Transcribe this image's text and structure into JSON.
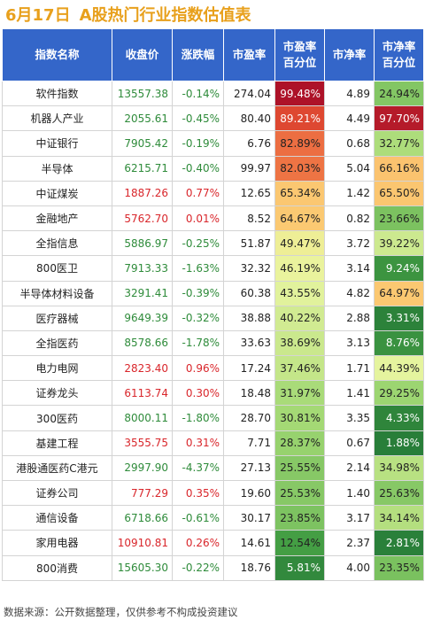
{
  "title": {
    "date": "6月17日",
    "text": "A股热门行业指数估值表"
  },
  "headers": [
    "指数名称",
    "收盘价",
    "涨跌幅",
    "市盈率",
    "市盈率百分位",
    "市净率",
    "市净率百分位"
  ],
  "colors": {
    "header_bg": "#3466c9",
    "title": "#e8a01c",
    "up": "#d9262b",
    "down": "#2e8b3a"
  },
  "rows": [
    {
      "name": "软件指数",
      "close": "13557.38",
      "change": "-0.14%",
      "pe": "274.04",
      "pe_pct": "99.48%",
      "pb": "4.89",
      "pb_pct": "24.94%"
    },
    {
      "name": "机器人产业",
      "close": "2055.61",
      "change": "-0.45%",
      "pe": "80.40",
      "pe_pct": "89.21%",
      "pb": "4.49",
      "pb_pct": "97.70%"
    },
    {
      "name": "中证银行",
      "close": "7905.42",
      "change": "-0.19%",
      "pe": "6.76",
      "pe_pct": "82.89%",
      "pb": "0.68",
      "pb_pct": "32.77%"
    },
    {
      "name": "半导体",
      "close": "6215.71",
      "change": "-0.40%",
      "pe": "99.97",
      "pe_pct": "82.03%",
      "pb": "5.04",
      "pb_pct": "66.16%"
    },
    {
      "name": "中证煤炭",
      "close": "1887.26",
      "change": "0.77%",
      "pe": "12.65",
      "pe_pct": "65.34%",
      "pb": "1.42",
      "pb_pct": "65.50%"
    },
    {
      "name": "金融地产",
      "close": "5762.70",
      "change": "0.01%",
      "pe": "8.52",
      "pe_pct": "64.67%",
      "pb": "0.82",
      "pb_pct": "23.66%"
    },
    {
      "name": "全指信息",
      "close": "5886.97",
      "change": "-0.25%",
      "pe": "51.87",
      "pe_pct": "49.47%",
      "pb": "3.72",
      "pb_pct": "39.22%"
    },
    {
      "name": "800医卫",
      "close": "7913.33",
      "change": "-1.63%",
      "pe": "32.32",
      "pe_pct": "46.19%",
      "pb": "3.14",
      "pb_pct": "9.24%"
    },
    {
      "name": "半导体材料设备",
      "close": "3291.41",
      "change": "-0.39%",
      "pe": "60.38",
      "pe_pct": "43.55%",
      "pb": "4.82",
      "pb_pct": "64.97%"
    },
    {
      "name": "医疗器械",
      "close": "9649.39",
      "change": "-0.32%",
      "pe": "38.88",
      "pe_pct": "40.22%",
      "pb": "2.88",
      "pb_pct": "3.31%"
    },
    {
      "name": "全指医药",
      "close": "8578.66",
      "change": "-1.78%",
      "pe": "33.63",
      "pe_pct": "38.69%",
      "pb": "3.13",
      "pb_pct": "8.76%"
    },
    {
      "name": "电力电网",
      "close": "2823.40",
      "change": "0.96%",
      "pe": "17.24",
      "pe_pct": "37.46%",
      "pb": "1.71",
      "pb_pct": "44.39%"
    },
    {
      "name": "证券龙头",
      "close": "6113.74",
      "change": "0.30%",
      "pe": "18.48",
      "pe_pct": "31.97%",
      "pb": "1.41",
      "pb_pct": "29.25%"
    },
    {
      "name": "300医药",
      "close": "8000.11",
      "change": "-1.80%",
      "pe": "28.70",
      "pe_pct": "30.81%",
      "pb": "3.35",
      "pb_pct": "4.33%"
    },
    {
      "name": "基建工程",
      "close": "3555.75",
      "change": "0.31%",
      "pe": "7.71",
      "pe_pct": "28.37%",
      "pb": "0.67",
      "pb_pct": "1.88%"
    },
    {
      "name": "港股通医药C港元",
      "close": "2997.90",
      "change": "-4.37%",
      "pe": "27.13",
      "pe_pct": "25.55%",
      "pb": "2.14",
      "pb_pct": "34.98%"
    },
    {
      "name": "证券公司",
      "close": "777.29",
      "change": "0.35%",
      "pe": "19.60",
      "pe_pct": "25.53%",
      "pb": "1.40",
      "pb_pct": "25.63%"
    },
    {
      "name": "通信设备",
      "close": "6718.66",
      "change": "-0.61%",
      "pe": "30.17",
      "pe_pct": "23.85%",
      "pb": "3.17",
      "pb_pct": "34.14%"
    },
    {
      "name": "家用电器",
      "close": "10910.81",
      "change": "0.26%",
      "pe": "14.61",
      "pe_pct": "12.54%",
      "pb": "2.37",
      "pb_pct": "2.81%"
    },
    {
      "name": "800消费",
      "close": "15605.30",
      "change": "-0.22%",
      "pe": "18.76",
      "pe_pct": "5.81%",
      "pb": "4.00",
      "pb_pct": "23.35%"
    }
  ],
  "footer": "数据来源：公开数据整理，仅供参考不构成投资建议"
}
